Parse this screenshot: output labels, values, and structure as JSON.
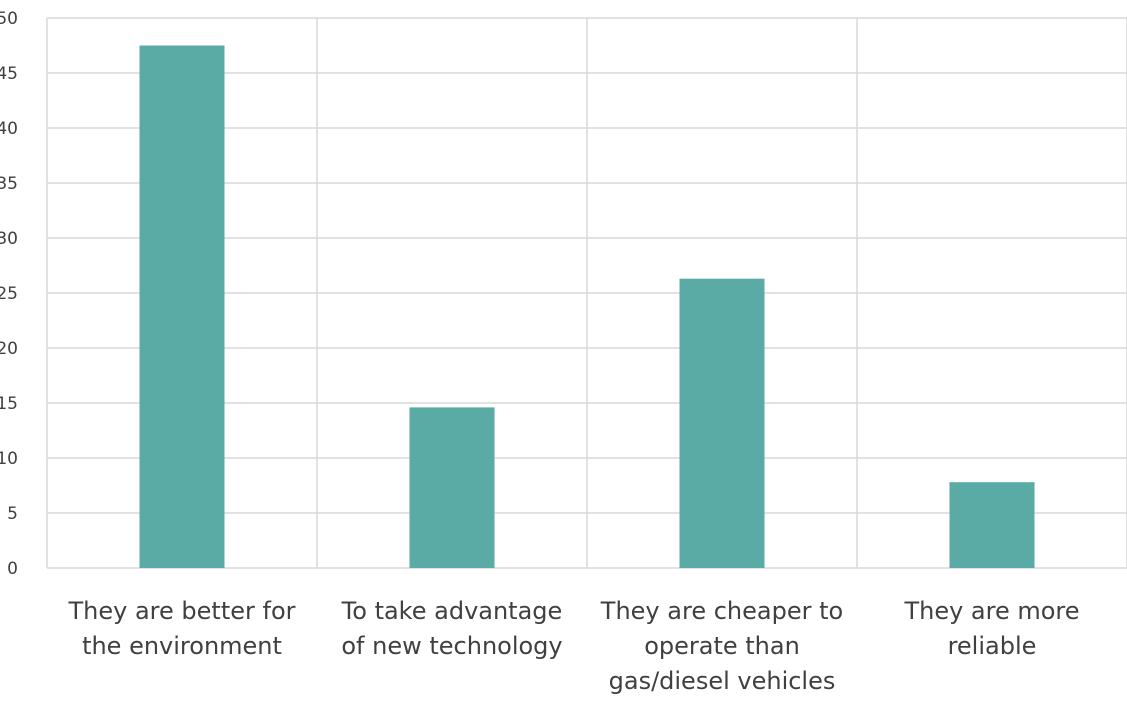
{
  "chart_data": {
    "type": "bar",
    "categories": [
      "They are better for the environment",
      "To take advantage of new technology",
      "They are cheaper to operate than gas/diesel vehicles",
      "They are more reliable"
    ],
    "category_lines": [
      [
        "They are better for",
        "the environment"
      ],
      [
        "To take advantage",
        "of new technology"
      ],
      [
        "They are cheaper to",
        "operate than",
        "gas/diesel vehicles"
      ],
      [
        "They are more",
        "reliable"
      ]
    ],
    "values": [
      47.5,
      14.6,
      26.3,
      7.8
    ],
    "ylim": [
      0,
      50
    ],
    "yticks": [
      "0",
      "5",
      "10",
      "15",
      "20",
      "25",
      "30",
      "35",
      "40",
      "45",
      "50"
    ],
    "grid": true,
    "title": "",
    "xlabel": "",
    "ylabel": "",
    "bar_color": "#5aaaa6",
    "grid_color": "#d9d9d9"
  }
}
